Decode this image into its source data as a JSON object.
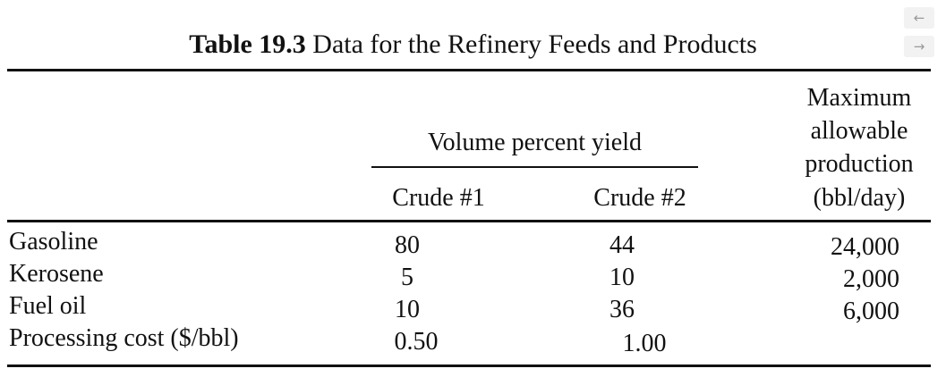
{
  "table": {
    "title_number": "Table 19.3",
    "title_text": "Data for the Refinery Feeds and Products",
    "header": {
      "group_label": "Volume percent yield",
      "col1": "Crude #1",
      "col2": "Crude #2",
      "max_lines": [
        "Maximum",
        "allowable",
        "production",
        "(bbl/day)"
      ]
    },
    "rows": [
      {
        "label": "Gasoline",
        "crude1": "80",
        "crude2": "44",
        "max": "24,000"
      },
      {
        "label": "Kerosene",
        "crude1": "5",
        "crude2": "10",
        "max": "2,000"
      },
      {
        "label": "Fuel oil",
        "crude1": "10",
        "crude2": "36",
        "max": "6,000"
      },
      {
        "label": "Processing cost ($/bbl)",
        "crude1": "0.50",
        "crude2": "1.00",
        "max": ""
      }
    ]
  },
  "nav": {
    "prev": "←",
    "next": "→"
  }
}
